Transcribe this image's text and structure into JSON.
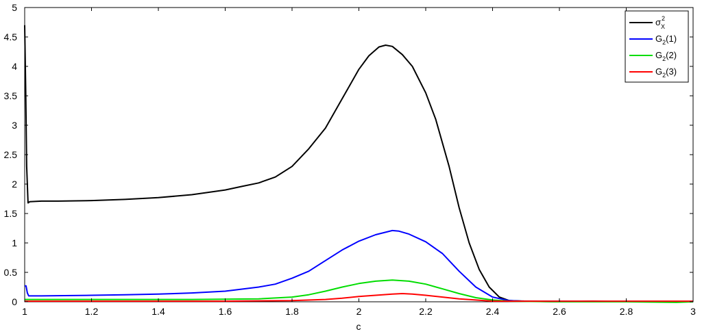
{
  "chart_data": {
    "type": "line",
    "title": "",
    "xlabel": "c",
    "ylabel": "",
    "xlim": [
      1,
      3
    ],
    "ylim": [
      0,
      5
    ],
    "grid": false,
    "legend_position": "top-right",
    "xticks": [
      1,
      1.2,
      1.4,
      1.6,
      1.8,
      2,
      2.2,
      2.4,
      2.6,
      2.8,
      3
    ],
    "xtick_labels": [
      "1",
      "1.2",
      "1.4",
      "1.6",
      "1.8",
      "2",
      "2.2",
      "2.4",
      "2.6",
      "2.8",
      "3"
    ],
    "yticks": [
      0,
      0.5,
      1,
      1.5,
      2,
      2.5,
      3,
      3.5,
      4,
      4.5,
      5
    ],
    "ytick_labels": [
      "0",
      "0.5",
      "1",
      "1.5",
      "2",
      "2.5",
      "3",
      "3.5",
      "4",
      "4.5",
      "5"
    ],
    "series": [
      {
        "name": "σX2",
        "legend": {
          "base": "σ",
          "sub": "X",
          "sup": "2",
          "rest": ""
        },
        "color": "#000000",
        "points": [
          [
            1.0,
            4.7
          ],
          [
            1.003,
            3.6
          ],
          [
            1.006,
            2.3
          ],
          [
            1.01,
            1.68
          ],
          [
            1.015,
            1.7
          ],
          [
            1.05,
            1.71
          ],
          [
            1.1,
            1.71
          ],
          [
            1.2,
            1.72
          ],
          [
            1.3,
            1.74
          ],
          [
            1.4,
            1.77
          ],
          [
            1.5,
            1.82
          ],
          [
            1.6,
            1.9
          ],
          [
            1.65,
            1.96
          ],
          [
            1.7,
            2.02
          ],
          [
            1.75,
            2.12
          ],
          [
            1.8,
            2.3
          ],
          [
            1.85,
            2.6
          ],
          [
            1.9,
            2.95
          ],
          [
            1.95,
            3.45
          ],
          [
            2.0,
            3.95
          ],
          [
            2.03,
            4.18
          ],
          [
            2.06,
            4.33
          ],
          [
            2.08,
            4.36
          ],
          [
            2.1,
            4.34
          ],
          [
            2.13,
            4.2
          ],
          [
            2.16,
            4.0
          ],
          [
            2.2,
            3.55
          ],
          [
            2.23,
            3.1
          ],
          [
            2.27,
            2.3
          ],
          [
            2.3,
            1.6
          ],
          [
            2.33,
            1.0
          ],
          [
            2.36,
            0.55
          ],
          [
            2.39,
            0.25
          ],
          [
            2.42,
            0.08
          ],
          [
            2.45,
            0.02
          ],
          [
            2.5,
            0.01
          ],
          [
            2.6,
            0.0
          ],
          [
            2.7,
            0.01
          ],
          [
            2.8,
            0.0
          ],
          [
            2.9,
            0.0
          ],
          [
            3.0,
            0.0
          ]
        ]
      },
      {
        "name": "G2(1)",
        "legend": {
          "base": "G",
          "sub": "2",
          "sup": "",
          "rest": "(1)"
        },
        "color": "#0000ff",
        "points": [
          [
            1.0,
            0.27
          ],
          [
            1.004,
            0.27
          ],
          [
            1.008,
            0.15
          ],
          [
            1.012,
            0.1
          ],
          [
            1.05,
            0.1
          ],
          [
            1.2,
            0.11
          ],
          [
            1.3,
            0.12
          ],
          [
            1.4,
            0.13
          ],
          [
            1.5,
            0.15
          ],
          [
            1.6,
            0.18
          ],
          [
            1.7,
            0.25
          ],
          [
            1.75,
            0.3
          ],
          [
            1.8,
            0.4
          ],
          [
            1.85,
            0.52
          ],
          [
            1.9,
            0.7
          ],
          [
            1.95,
            0.88
          ],
          [
            2.0,
            1.03
          ],
          [
            2.05,
            1.14
          ],
          [
            2.1,
            1.21
          ],
          [
            2.12,
            1.2
          ],
          [
            2.15,
            1.15
          ],
          [
            2.2,
            1.02
          ],
          [
            2.25,
            0.82
          ],
          [
            2.3,
            0.52
          ],
          [
            2.35,
            0.25
          ],
          [
            2.4,
            0.08
          ],
          [
            2.45,
            0.02
          ],
          [
            2.5,
            0.01
          ],
          [
            3.0,
            0.0
          ]
        ]
      },
      {
        "name": "G2(2)",
        "legend": {
          "base": "G",
          "sub": "2",
          "sup": "",
          "rest": "(2)"
        },
        "color": "#00dd00",
        "points": [
          [
            1.0,
            0.04
          ],
          [
            1.5,
            0.04
          ],
          [
            1.7,
            0.05
          ],
          [
            1.8,
            0.08
          ],
          [
            1.85,
            0.12
          ],
          [
            1.9,
            0.18
          ],
          [
            1.95,
            0.25
          ],
          [
            2.0,
            0.31
          ],
          [
            2.05,
            0.35
          ],
          [
            2.1,
            0.37
          ],
          [
            2.15,
            0.35
          ],
          [
            2.2,
            0.3
          ],
          [
            2.25,
            0.22
          ],
          [
            2.3,
            0.14
          ],
          [
            2.35,
            0.07
          ],
          [
            2.4,
            0.03
          ],
          [
            2.45,
            0.01
          ],
          [
            2.6,
            0.0
          ],
          [
            2.8,
            0.0
          ],
          [
            2.95,
            -0.01
          ],
          [
            3.0,
            0.0
          ]
        ]
      },
      {
        "name": "G2(3)",
        "legend": {
          "base": "G",
          "sub": "2",
          "sup": "",
          "rest": "(3)"
        },
        "color": "#ff0000",
        "points": [
          [
            1.0,
            0.01
          ],
          [
            1.6,
            0.01
          ],
          [
            1.8,
            0.02
          ],
          [
            1.9,
            0.04
          ],
          [
            1.95,
            0.06
          ],
          [
            2.0,
            0.09
          ],
          [
            2.05,
            0.11
          ],
          [
            2.1,
            0.13
          ],
          [
            2.13,
            0.14
          ],
          [
            2.16,
            0.13
          ],
          [
            2.2,
            0.11
          ],
          [
            2.25,
            0.08
          ],
          [
            2.3,
            0.05
          ],
          [
            2.35,
            0.03
          ],
          [
            2.4,
            0.01
          ],
          [
            2.5,
            0.01
          ],
          [
            3.0,
            0.01
          ]
        ]
      }
    ]
  }
}
